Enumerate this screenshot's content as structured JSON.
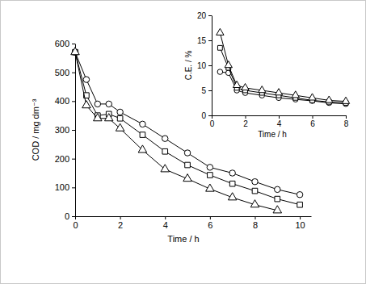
{
  "chart_data": [
    {
      "type": "line",
      "x_label": "Time / h",
      "y_label": "COD / mg dm⁻³",
      "x": [
        0,
        0.5,
        1,
        1.5,
        2,
        3,
        4,
        5,
        6,
        7,
        8,
        9,
        10
      ],
      "series": [
        {
          "marker": "circle",
          "color": "#000000",
          "values": [
            570,
            475,
            390,
            390,
            362,
            320,
            270,
            220,
            170,
            150,
            120,
            93,
            75
          ]
        },
        {
          "marker": "square",
          "color": "#000000",
          "values": [
            570,
            420,
            350,
            355,
            340,
            283,
            225,
            178,
            143,
            113,
            88,
            60,
            40
          ]
        },
        {
          "marker": "triangle",
          "color": "#000000",
          "values": [
            570,
            385,
            340,
            340,
            305,
            230,
            163,
            130,
            95,
            65,
            40,
            20,
            null
          ]
        }
      ],
      "xlim": [
        0,
        10.5
      ],
      "ylim": [
        0,
        600
      ],
      "xticks": [
        0,
        2,
        4,
        6,
        8,
        10
      ],
      "yticks": [
        0,
        100,
        200,
        300,
        400,
        500,
        600
      ],
      "grid": false
    },
    {
      "type": "line",
      "x_label": "Time / h",
      "y_label": "C.E. / %",
      "x": [
        0.5,
        1,
        1.5,
        2,
        3,
        4,
        5,
        6,
        7,
        8
      ],
      "series": [
        {
          "marker": "circle",
          "color": "#000000",
          "values": [
            8.7,
            8.5,
            5,
            4.5,
            4,
            3.5,
            3.2,
            2.9,
            2.5,
            2.3
          ]
        },
        {
          "marker": "square",
          "color": "#000000",
          "values": [
            13.5,
            9.5,
            5.5,
            5,
            4.5,
            4,
            3.5,
            3,
            2.7,
            2.5
          ]
        },
        {
          "marker": "triangle",
          "color": "#000000",
          "values": [
            16.5,
            10,
            6,
            5.5,
            5,
            4.5,
            4,
            3.5,
            3,
            2.8
          ]
        }
      ],
      "xlim": [
        0,
        8
      ],
      "ylim": [
        0,
        20
      ],
      "xticks": [
        0,
        2,
        4,
        6,
        8
      ],
      "yticks": [
        0,
        5,
        10,
        15,
        20
      ],
      "grid": false
    }
  ]
}
